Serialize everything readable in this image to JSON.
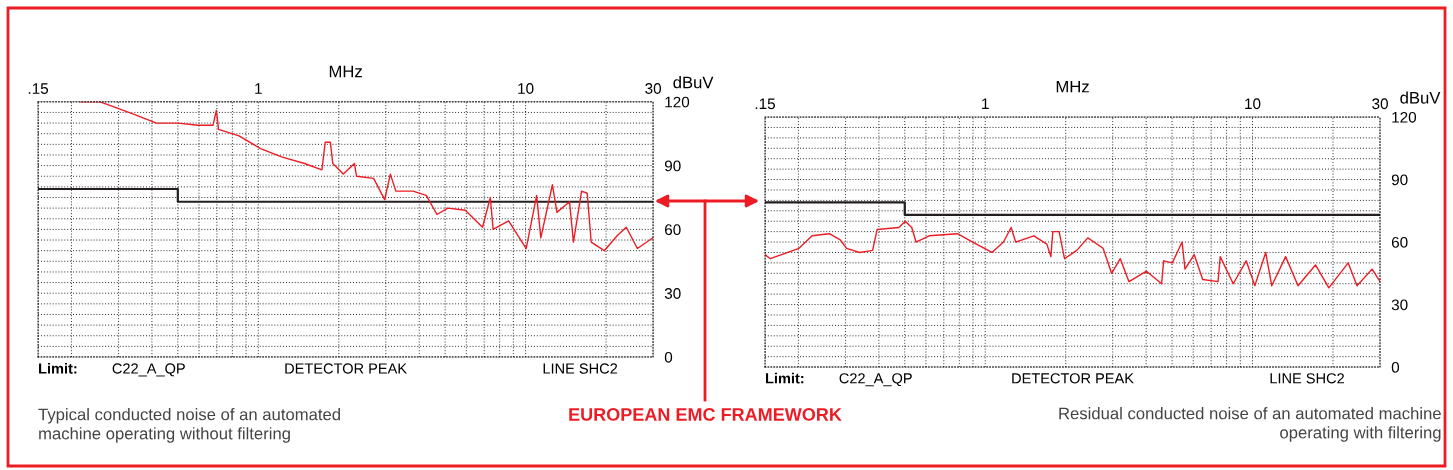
{
  "chart_data": [
    {
      "type": "line",
      "xlabel": "MHz",
      "ylabel": "dBuV",
      "log": "x",
      "grid": true,
      "xlim": [
        0.15,
        30
      ],
      "xticks": [
        {
          "value": 0.15,
          "label": ".15"
        },
        1,
        10,
        30
      ],
      "ylim": [
        0,
        120
      ],
      "yticks": [
        0,
        30,
        60,
        90,
        120
      ],
      "series": [
        {
          "type": "step",
          "color": "#231f20",
          "x": [
            0.15,
            0.5,
            30
          ],
          "values": [
            79,
            73,
            73
          ]
        },
        {
          "color": "#ed1c24",
          "x": [
            0.216,
            0.256,
            0.297,
            0.345,
            0.416,
            0.501,
            0.594,
            0.677,
            0.697,
            0.71,
            0.847,
            1.02,
            1.23,
            1.49,
            1.73,
            1.78,
            1.86,
            1.9,
            2.08,
            2.29,
            2.33,
            2.7,
            2.97,
            3.12,
            3.27,
            3.79,
            4.25,
            4.66,
            5.12,
            5.95,
            6.9,
            7.38,
            7.56,
            8.64,
            10.05,
            11.0,
            11.4,
            12.6,
            13.1,
            14.6,
            15.1,
            16.2,
            17.0,
            17.6,
            19.7,
            22.0,
            23.8,
            26.2,
            29.9
          ],
          "values": [
            120,
            120,
            117,
            114,
            110,
            110,
            109,
            109,
            116,
            107,
            104,
            98,
            94,
            91,
            88,
            101,
            101,
            91,
            86,
            91,
            85,
            84,
            74,
            86,
            78,
            78,
            76,
            67,
            70,
            69,
            61,
            75,
            60,
            64,
            51,
            76,
            56,
            81,
            68,
            73,
            54,
            78,
            77,
            54,
            50,
            57,
            61,
            51,
            56
          ]
        }
      ],
      "annotations": [
        "Limit:",
        "C22_A_QP",
        "DETECTOR PEAK",
        "LINE SHC2",
        "Typical conducted noise of an automated\nmachine operating without filtering",
        "EUROPEAN EMC FRAMEWORK"
      ]
    },
    {
      "type": "line",
      "xlabel": "MHz",
      "ylabel": "dBuV",
      "log": "x",
      "grid": true,
      "xlim": [
        0.15,
        30
      ],
      "xticks": [
        {
          "value": 0.15,
          "label": ".15"
        },
        1,
        10,
        30
      ],
      "ylim": [
        0,
        120
      ],
      "yticks": [
        0,
        30,
        60,
        90,
        120
      ],
      "series": [
        {
          "type": "step",
          "color": "#231f20",
          "x": [
            0.15,
            0.5,
            30
          ],
          "values": [
            79,
            73,
            73
          ]
        },
        {
          "color": "#ed1c24",
          "x": [
            0.15,
            0.157,
            0.201,
            0.225,
            0.261,
            0.287,
            0.303,
            0.339,
            0.379,
            0.394,
            0.475,
            0.502,
            0.531,
            0.551,
            0.617,
            0.787,
            0.897,
            1.06,
            1.17,
            1.25,
            1.3,
            1.52,
            1.7,
            1.76,
            1.79,
            1.89,
            1.98,
            2.2,
            2.42,
            2.76,
            2.97,
            3.2,
            3.45,
            4.01,
            4.57,
            4.65,
            5.01,
            5.45,
            5.59,
            6.05,
            6.51,
            7.43,
            7.57,
            8.47,
            9.47,
            10.2,
            11.2,
            11.8,
            13.3,
            14.8,
            17.2,
            19.3,
            22.8,
            24.6,
            28.0,
            30
          ],
          "values": [
            54,
            52,
            57,
            63,
            64,
            61,
            57,
            55,
            56,
            66,
            67,
            70,
            67,
            60,
            63,
            64,
            60,
            55,
            60,
            67,
            60,
            63,
            59,
            53,
            65,
            65,
            52,
            56,
            62,
            57,
            45,
            52,
            41,
            46,
            40,
            51,
            50,
            60,
            47,
            54,
            42,
            41,
            53,
            40,
            51,
            39,
            55,
            39,
            53,
            39,
            49,
            38,
            50,
            39,
            47,
            41
          ]
        }
      ],
      "annotations": [
        "Limit:",
        "C22_A_QP",
        "DETECTOR PEAK",
        "LINE SHC2",
        "Residual conducted noise of an automated machine\noperating with filtering"
      ]
    }
  ]
}
